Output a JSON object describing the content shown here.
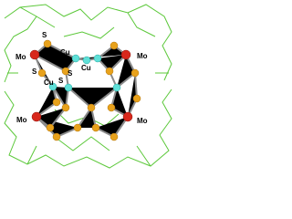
{
  "labels": [
    "Mo",
    "S",
    "Cu",
    "Cu",
    "S",
    "S",
    "S",
    "S",
    "Cu",
    "Mo",
    "Mo",
    "Mo"
  ]
}
